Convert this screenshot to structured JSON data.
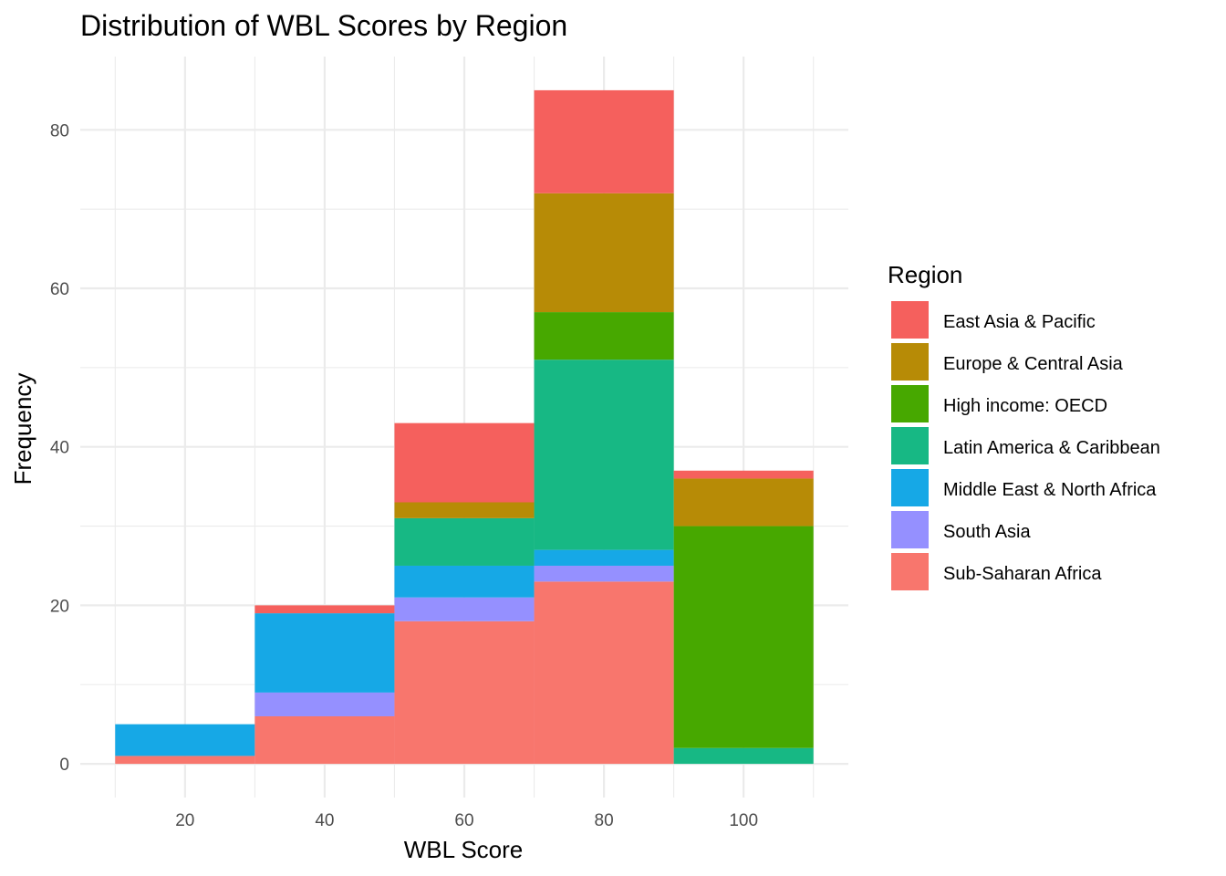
{
  "chart_data": {
    "type": "bar",
    "stacked": true,
    "title": "Distribution of WBL Scores by Region",
    "xlabel": "WBL Score",
    "ylabel": "Frequency",
    "bins": [
      {
        "from": 10,
        "to": 30
      },
      {
        "from": 30,
        "to": 50
      },
      {
        "from": 50,
        "to": 70
      },
      {
        "from": 70,
        "to": 90
      },
      {
        "from": 90,
        "to": 110
      }
    ],
    "x_ticks": [
      20,
      40,
      60,
      80,
      100
    ],
    "y_ticks": [
      0,
      20,
      40,
      60,
      80
    ],
    "xlim": [
      5,
      115
    ],
    "ylim": [
      -4.25,
      89.25
    ],
    "grid": true,
    "legend": {
      "title": "Region",
      "position": "right"
    },
    "series": [
      {
        "name": "Sub-Saharan Africa",
        "color": "#F8766D",
        "values": [
          1,
          6,
          18,
          23,
          0
        ],
        "fill": "#F8766D"
      },
      {
        "name": "South Asia",
        "values": [
          0,
          3,
          3,
          2,
          0
        ],
        "color": "#9590FF"
      },
      {
        "name": "Middle East & North Africa",
        "values": [
          4,
          10,
          4,
          2,
          0
        ],
        "color": "#16A8E6"
      },
      {
        "name": "Latin America & Caribbean",
        "values": [
          0,
          0,
          6,
          24,
          2
        ],
        "color": "#17B884"
      },
      {
        "name": "High income: OECD",
        "values": [
          0,
          0,
          0,
          6,
          28
        ],
        "color": "#47A800"
      },
      {
        "name": "Europe & Central Asia",
        "values": [
          0,
          0,
          2,
          15,
          6
        ],
        "color": "#B78B06"
      },
      {
        "name": "East Asia & Pacific",
        "values": [
          0,
          1,
          10,
          13,
          1
        ],
        "color": "#F5605D"
      }
    ],
    "legend_order": [
      "East Asia & Pacific",
      "Europe & Central Asia",
      "High income: OECD",
      "Latin America & Caribbean",
      "Middle East & North Africa",
      "South Asia",
      "Sub-Saharan Africa"
    ]
  }
}
